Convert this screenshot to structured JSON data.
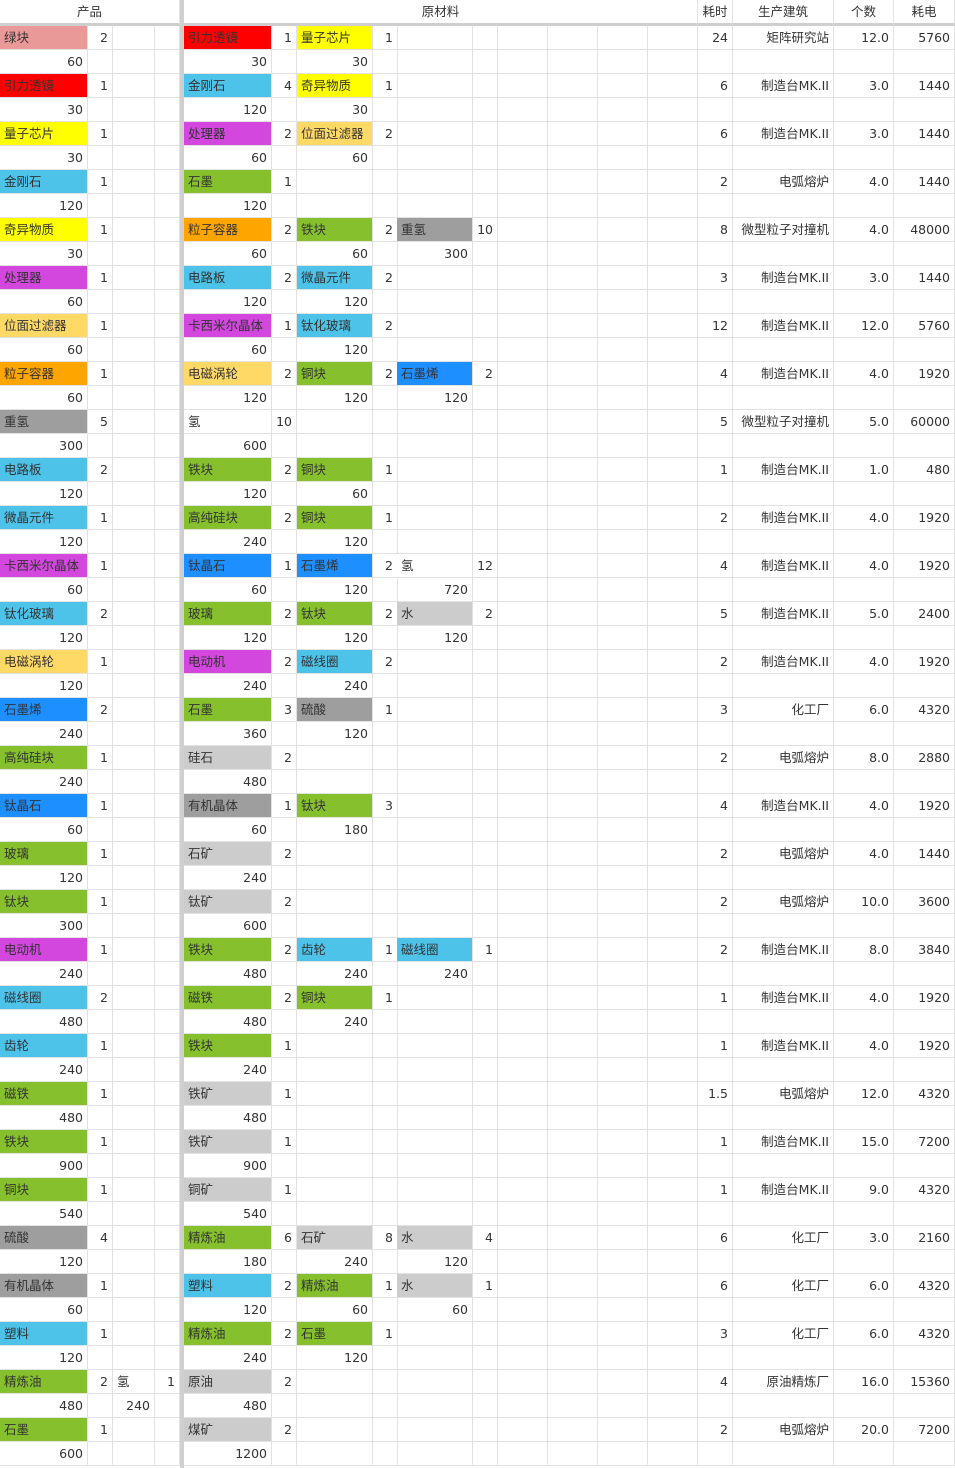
{
  "header": {
    "product": "产品",
    "materials": "原材料",
    "time": "耗时",
    "building": "生产建筑",
    "number": "个数",
    "power": "耗电"
  },
  "rows": [
    {
      "product": {
        "name": "绿块",
        "count": 2,
        "rate": 60,
        "color": "#ea9999"
      },
      "materials": [
        {
          "name": "引力透镜",
          "count": 1,
          "rate": 30,
          "color": "#ff0000"
        },
        {
          "name": "量子芯片",
          "count": 1,
          "rate": 30,
          "color": "#ffff00"
        }
      ],
      "time": 24,
      "building": "矩阵研究站",
      "number": "12.0",
      "power": 5760
    },
    {
      "product": {
        "name": "引力透镜",
        "count": 1,
        "rate": 30,
        "color": "#ff0000"
      },
      "materials": [
        {
          "name": "金刚石",
          "count": 4,
          "rate": 120,
          "color": "#4ec3ea"
        },
        {
          "name": "奇异物质",
          "count": 1,
          "rate": 30,
          "color": "#ffff00"
        }
      ],
      "time": 6,
      "building": "制造台MK.II",
      "number": "3.0",
      "power": 1440
    },
    {
      "product": {
        "name": "量子芯片",
        "count": 1,
        "rate": 30,
        "color": "#ffff00"
      },
      "materials": [
        {
          "name": "处理器",
          "count": 2,
          "rate": 60,
          "color": "#d347de"
        },
        {
          "name": "位面过滤器",
          "count": 2,
          "rate": 60,
          "color": "#ffd966"
        }
      ],
      "time": 6,
      "building": "制造台MK.II",
      "number": "3.0",
      "power": 1440
    },
    {
      "product": {
        "name": "金刚石",
        "count": 1,
        "rate": 120,
        "color": "#4ec3ea"
      },
      "materials": [
        {
          "name": "石墨",
          "count": 1,
          "rate": 120,
          "color": "#86c12d"
        }
      ],
      "time": 2,
      "building": "电弧熔炉",
      "number": "4.0",
      "power": 1440
    },
    {
      "product": {
        "name": "奇异物质",
        "count": 1,
        "rate": 30,
        "color": "#ffff00"
      },
      "materials": [
        {
          "name": "粒子容器",
          "count": 2,
          "rate": 60,
          "color": "#ffa500"
        },
        {
          "name": "铁块",
          "count": 2,
          "rate": 60,
          "color": "#86c12d"
        },
        {
          "name": "重氢",
          "count": 10,
          "rate": 300,
          "color": "#9e9e9e"
        }
      ],
      "time": 8,
      "building": "微型粒子对撞机",
      "number": "4.0",
      "power": 48000
    },
    {
      "product": {
        "name": "处理器",
        "count": 1,
        "rate": 60,
        "color": "#d347de"
      },
      "materials": [
        {
          "name": "电路板",
          "count": 2,
          "rate": 120,
          "color": "#4ec3ea"
        },
        {
          "name": "微晶元件",
          "count": 2,
          "rate": 120,
          "color": "#4ec3ea"
        }
      ],
      "time": 3,
      "building": "制造台MK.II",
      "number": "3.0",
      "power": 1440
    },
    {
      "product": {
        "name": "位面过滤器",
        "count": 1,
        "rate": 60,
        "color": "#ffd966"
      },
      "materials": [
        {
          "name": "卡西米尔晶体",
          "count": 1,
          "rate": 60,
          "color": "#d347de"
        },
        {
          "name": "钛化玻璃",
          "count": 2,
          "rate": 120,
          "color": "#4ec3ea"
        }
      ],
      "time": 12,
      "building": "制造台MK.II",
      "number": "12.0",
      "power": 5760
    },
    {
      "product": {
        "name": "粒子容器",
        "count": 1,
        "rate": 60,
        "color": "#ffa500"
      },
      "materials": [
        {
          "name": "电磁涡轮",
          "count": 2,
          "rate": 120,
          "color": "#ffd966"
        },
        {
          "name": "铜块",
          "count": 2,
          "rate": 120,
          "color": "#86c12d"
        },
        {
          "name": "石墨烯",
          "count": 2,
          "rate": 120,
          "color": "#1e8fff"
        }
      ],
      "time": 4,
      "building": "制造台MK.II",
      "number": "4.0",
      "power": 1920
    },
    {
      "product": {
        "name": "重氢",
        "count": 5,
        "rate": 300,
        "color": "#9e9e9e"
      },
      "materials": [
        {
          "name": "氢",
          "count": 10,
          "rate": 600,
          "color": "#ffffff"
        }
      ],
      "time": 5,
      "building": "微型粒子对撞机",
      "number": "5.0",
      "power": 60000
    },
    {
      "product": {
        "name": "电路板",
        "count": 2,
        "rate": 120,
        "color": "#4ec3ea"
      },
      "materials": [
        {
          "name": "铁块",
          "count": 2,
          "rate": 120,
          "color": "#86c12d"
        },
        {
          "name": "铜块",
          "count": 1,
          "rate": 60,
          "color": "#86c12d"
        }
      ],
      "time": 1,
      "building": "制造台MK.II",
      "number": "1.0",
      "power": 480
    },
    {
      "product": {
        "name": "微晶元件",
        "count": 1,
        "rate": 120,
        "color": "#4ec3ea"
      },
      "materials": [
        {
          "name": "高纯硅块",
          "count": 2,
          "rate": 240,
          "color": "#86c12d"
        },
        {
          "name": "铜块",
          "count": 1,
          "rate": 120,
          "color": "#86c12d"
        }
      ],
      "time": 2,
      "building": "制造台MK.II",
      "number": "4.0",
      "power": 1920
    },
    {
      "product": {
        "name": "卡西米尔晶体",
        "count": 1,
        "rate": 60,
        "color": "#d347de"
      },
      "materials": [
        {
          "name": "钛晶石",
          "count": 1,
          "rate": 60,
          "color": "#1e8fff"
        },
        {
          "name": "石墨烯",
          "count": 2,
          "rate": 120,
          "color": "#1e8fff"
        },
        {
          "name": "氢",
          "count": 12,
          "rate": 720,
          "color": "#ffffff"
        }
      ],
      "time": 4,
      "building": "制造台MK.II",
      "number": "4.0",
      "power": 1920
    },
    {
      "product": {
        "name": "钛化玻璃",
        "count": 2,
        "rate": 120,
        "color": "#4ec3ea"
      },
      "materials": [
        {
          "name": "玻璃",
          "count": 2,
          "rate": 120,
          "color": "#86c12d"
        },
        {
          "name": "钛块",
          "count": 2,
          "rate": 120,
          "color": "#86c12d"
        },
        {
          "name": "水",
          "count": 2,
          "rate": 120,
          "color": "#cccccc"
        }
      ],
      "time": 5,
      "building": "制造台MK.II",
      "number": "5.0",
      "power": 2400
    },
    {
      "product": {
        "name": "电磁涡轮",
        "count": 1,
        "rate": 120,
        "color": "#ffd966"
      },
      "materials": [
        {
          "name": "电动机",
          "count": 2,
          "rate": 240,
          "color": "#d347de"
        },
        {
          "name": "磁线圈",
          "count": 2,
          "rate": 240,
          "color": "#4ec3ea"
        }
      ],
      "time": 2,
      "building": "制造台MK.II",
      "number": "4.0",
      "power": 1920
    },
    {
      "product": {
        "name": "石墨烯",
        "count": 2,
        "rate": 240,
        "color": "#1e8fff"
      },
      "materials": [
        {
          "name": "石墨",
          "count": 3,
          "rate": 360,
          "color": "#86c12d"
        },
        {
          "name": "硫酸",
          "count": 1,
          "rate": 120,
          "color": "#9e9e9e"
        }
      ],
      "time": 3,
      "building": "化工厂",
      "number": "6.0",
      "power": 4320
    },
    {
      "product": {
        "name": "高纯硅块",
        "count": 1,
        "rate": 240,
        "color": "#86c12d"
      },
      "materials": [
        {
          "name": "硅石",
          "count": 2,
          "rate": 480,
          "color": "#cccccc"
        }
      ],
      "time": 2,
      "building": "电弧熔炉",
      "number": "8.0",
      "power": 2880
    },
    {
      "product": {
        "name": "钛晶石",
        "count": 1,
        "rate": 60,
        "color": "#1e8fff"
      },
      "materials": [
        {
          "name": "有机晶体",
          "count": 1,
          "rate": 60,
          "color": "#9e9e9e"
        },
        {
          "name": "钛块",
          "count": 3,
          "rate": 180,
          "color": "#86c12d"
        }
      ],
      "time": 4,
      "building": "制造台MK.II",
      "number": "4.0",
      "power": 1920
    },
    {
      "product": {
        "name": "玻璃",
        "count": 1,
        "rate": 120,
        "color": "#86c12d"
      },
      "materials": [
        {
          "name": "石矿",
          "count": 2,
          "rate": 240,
          "color": "#cccccc"
        }
      ],
      "time": 2,
      "building": "电弧熔炉",
      "number": "4.0",
      "power": 1440
    },
    {
      "product": {
        "name": "钛块",
        "count": 1,
        "rate": 300,
        "color": "#86c12d"
      },
      "materials": [
        {
          "name": "钛矿",
          "count": 2,
          "rate": 600,
          "color": "#cccccc"
        }
      ],
      "time": 2,
      "building": "电弧熔炉",
      "number": "10.0",
      "power": 3600
    },
    {
      "product": {
        "name": "电动机",
        "count": 1,
        "rate": 240,
        "color": "#d347de"
      },
      "materials": [
        {
          "name": "铁块",
          "count": 2,
          "rate": 480,
          "color": "#86c12d"
        },
        {
          "name": "齿轮",
          "count": 1,
          "rate": 240,
          "color": "#4ec3ea"
        },
        {
          "name": "磁线圈",
          "count": 1,
          "rate": 240,
          "color": "#4ec3ea"
        }
      ],
      "time": 2,
      "building": "制造台MK.II",
      "number": "8.0",
      "power": 3840
    },
    {
      "product": {
        "name": "磁线圈",
        "count": 2,
        "rate": 480,
        "color": "#4ec3ea"
      },
      "materials": [
        {
          "name": "磁铁",
          "count": 2,
          "rate": 480,
          "color": "#86c12d"
        },
        {
          "name": "铜块",
          "count": 1,
          "rate": 240,
          "color": "#86c12d"
        }
      ],
      "time": 1,
      "building": "制造台MK.II",
      "number": "4.0",
      "power": 1920
    },
    {
      "product": {
        "name": "齿轮",
        "count": 1,
        "rate": 240,
        "color": "#4ec3ea"
      },
      "materials": [
        {
          "name": "铁块",
          "count": 1,
          "rate": 240,
          "color": "#86c12d"
        }
      ],
      "time": 1,
      "building": "制造台MK.II",
      "number": "4.0",
      "power": 1920
    },
    {
      "product": {
        "name": "磁铁",
        "count": 1,
        "rate": 480,
        "color": "#86c12d"
      },
      "materials": [
        {
          "name": "铁矿",
          "count": 1,
          "rate": 480,
          "color": "#cccccc"
        }
      ],
      "time": 1.5,
      "building": "电弧熔炉",
      "number": "12.0",
      "power": 4320
    },
    {
      "product": {
        "name": "铁块",
        "count": 1,
        "rate": 900,
        "color": "#86c12d"
      },
      "materials": [
        {
          "name": "铁矿",
          "count": 1,
          "rate": 900,
          "color": "#cccccc"
        }
      ],
      "time": 1,
      "building": "制造台MK.II",
      "number": "15.0",
      "power": 7200
    },
    {
      "product": {
        "name": "铜块",
        "count": 1,
        "rate": 540,
        "color": "#86c12d"
      },
      "materials": [
        {
          "name": "铜矿",
          "count": 1,
          "rate": 540,
          "color": "#cccccc"
        }
      ],
      "time": 1,
      "building": "制造台MK.II",
      "number": "9.0",
      "power": 4320
    },
    {
      "product": {
        "name": "硫酸",
        "count": 4,
        "rate": 120,
        "color": "#9e9e9e"
      },
      "materials": [
        {
          "name": "精炼油",
          "count": 6,
          "rate": 180,
          "color": "#86c12d"
        },
        {
          "name": "石矿",
          "count": 8,
          "rate": 240,
          "color": "#cccccc"
        },
        {
          "name": "水",
          "count": 4,
          "rate": 120,
          "color": "#cccccc"
        }
      ],
      "time": 6,
      "building": "化工厂",
      "number": "3.0",
      "power": 2160
    },
    {
      "product": {
        "name": "有机晶体",
        "count": 1,
        "rate": 60,
        "color": "#9e9e9e"
      },
      "materials": [
        {
          "name": "塑料",
          "count": 2,
          "rate": 120,
          "color": "#4ec3ea"
        },
        {
          "name": "精炼油",
          "count": 1,
          "rate": 60,
          "color": "#86c12d"
        },
        {
          "name": "水",
          "count": 1,
          "rate": 60,
          "color": "#cccccc"
        }
      ],
      "time": 6,
      "building": "化工厂",
      "number": "6.0",
      "power": 4320
    },
    {
      "product": {
        "name": "塑料",
        "count": 1,
        "rate": 120,
        "color": "#4ec3ea"
      },
      "materials": [
        {
          "name": "精炼油",
          "count": 2,
          "rate": 240,
          "color": "#86c12d"
        },
        {
          "name": "石墨",
          "count": 1,
          "rate": 120,
          "color": "#86c12d"
        }
      ],
      "time": 3,
      "building": "化工厂",
      "number": "6.0",
      "power": 4320
    },
    {
      "product": {
        "name": "精炼油",
        "count": 2,
        "rate": 480,
        "color": "#86c12d"
      },
      "byproduct": {
        "name": "氢",
        "count": 1,
        "rate": 240,
        "color": "#ffffff"
      },
      "materials": [
        {
          "name": "原油",
          "count": 2,
          "rate": 480,
          "color": "#cccccc"
        }
      ],
      "time": 4,
      "building": "原油精炼厂",
      "number": "16.0",
      "power": 15360
    },
    {
      "product": {
        "name": "石墨",
        "count": 1,
        "rate": 600,
        "color": "#86c12d"
      },
      "materials": [
        {
          "name": "煤矿",
          "count": 2,
          "rate": 1200,
          "color": "#cccccc"
        }
      ],
      "time": 2,
      "building": "电弧熔炉",
      "number": "20.0",
      "power": 7200
    }
  ]
}
